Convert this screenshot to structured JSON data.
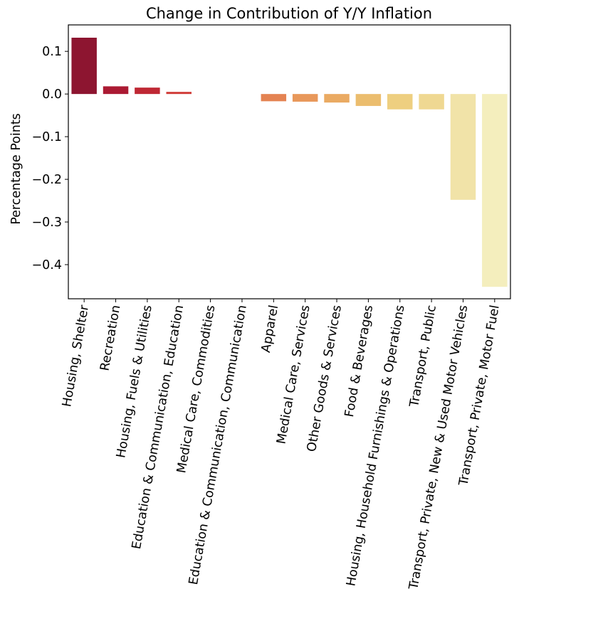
{
  "chart_data": {
    "type": "bar",
    "title": "Change in Contribution of Y/Y Inflation",
    "xlabel": "",
    "ylabel": "Percentage Points",
    "ylim": [
      -0.48,
      0.162
    ],
    "yticks": [
      0.1,
      0.0,
      -0.1,
      -0.2,
      -0.3,
      -0.4
    ],
    "ytick_labels": [
      "0.1",
      "0.0",
      "−0.1",
      "−0.2",
      "−0.3",
      "−0.4"
    ],
    "grid": false,
    "legend": null,
    "xtick_rotation_deg": 80,
    "categories": [
      "Housing, Shelter",
      "Recreation",
      "Housing, Fuels & Utilities",
      "Education & Communication, Education",
      "Medical Care, Commodities",
      "Education & Communication, Communication",
      "Apparel",
      "Medical Care, Services",
      "Other Goods & Services",
      "Food & Beverages",
      "Housing, Household Furnishings & Operations",
      "Transport, Public",
      "Transport, Private, New & Used Motor Vehicles",
      "Transport, Private, Motor Fuel"
    ],
    "values": [
      0.132,
      0.018,
      0.015,
      0.005,
      0.0,
      0.0,
      -0.017,
      -0.018,
      -0.02,
      -0.028,
      -0.036,
      -0.036,
      -0.248,
      -0.452
    ],
    "colors": [
      "#8d1530",
      "#ab1a33",
      "#bf2834",
      "#d03c38",
      "#da5a42",
      "#df7049",
      "#e48352",
      "#e8985a",
      "#eaaa62",
      "#ebbd6e",
      "#eecf80",
      "#efd892",
      "#f1e3a8",
      "#f4eebd"
    ]
  }
}
